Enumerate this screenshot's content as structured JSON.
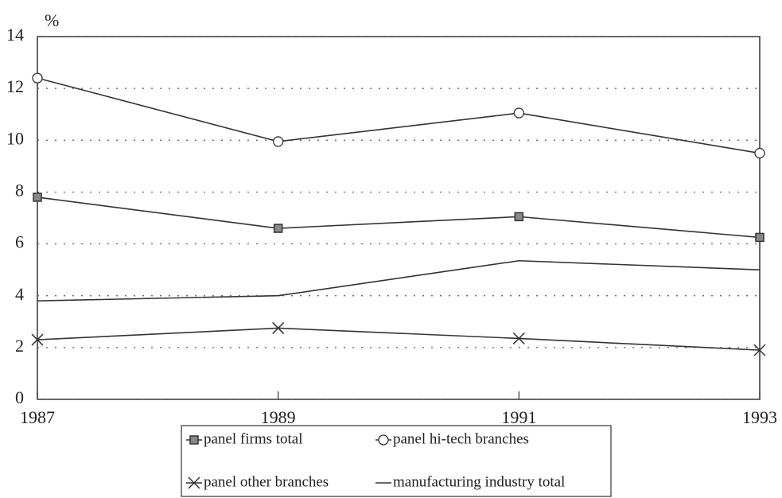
{
  "chart_data": {
    "type": "line",
    "y_label": "%",
    "x": [
      1987,
      1989,
      1991,
      1993
    ],
    "xlim": [
      1987,
      1993
    ],
    "xticks": [
      1987,
      1989,
      1991,
      1993
    ],
    "ylim": [
      0,
      14
    ],
    "yticks": [
      0,
      2,
      4,
      6,
      8,
      10,
      12,
      14
    ],
    "grid": true,
    "legend": "bottom",
    "series": [
      {
        "name": "panel firms total",
        "color": "#333333",
        "marker": "square",
        "values": [
          7.8,
          6.6,
          7.05,
          6.25
        ]
      },
      {
        "name": "panel hi-tech branches",
        "color": "#333333",
        "marker": "circle",
        "values": [
          12.4,
          9.95,
          11.05,
          9.5
        ]
      },
      {
        "name": "panel other branches",
        "color": "#333333",
        "marker": "x",
        "values": [
          2.3,
          2.75,
          2.35,
          1.9
        ]
      },
      {
        "name": "manufacturing industry total",
        "color": "#333333",
        "marker": "none",
        "values": [
          3.8,
          4.0,
          5.35,
          5.0
        ]
      }
    ]
  }
}
